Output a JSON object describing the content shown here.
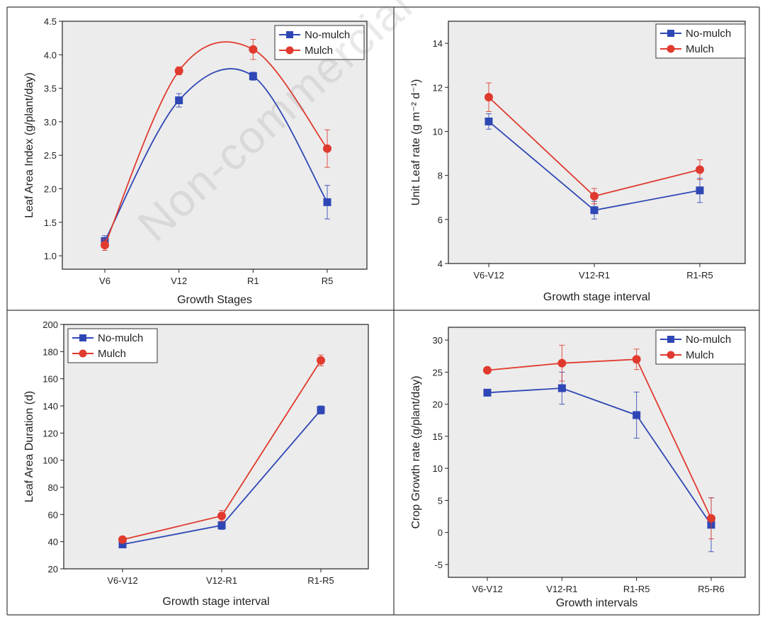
{
  "watermark": "Non-commercial",
  "colors": {
    "no_mulch": "#2f47b5",
    "mulch": "#e03a2e",
    "plot_bg": "#ececec",
    "axis": "#222222"
  },
  "chart_data": [
    {
      "type": "line",
      "xlabel": "Growth Stages",
      "ylabel": "Leaf Area Index (g/plant/day)",
      "categories": [
        "V6",
        "V12",
        "R1",
        "R5"
      ],
      "ylim": [
        0.8,
        4.5
      ],
      "yticks": [
        1.0,
        1.5,
        2.0,
        2.5,
        3.0,
        3.5,
        4.0,
        4.5
      ],
      "ytick_labels": [
        "1.0",
        "1.5",
        "2.0",
        "2.5",
        "3.0",
        "3.5",
        "4.0",
        "4.5"
      ],
      "smooth": true,
      "legend": "top-right",
      "series": [
        {
          "name": "No-mulch",
          "marker": "square",
          "values": [
            1.22,
            3.32,
            3.68,
            1.8
          ],
          "errors": [
            0.08,
            0.1,
            0.06,
            0.25
          ]
        },
        {
          "name": "Mulch",
          "marker": "circle",
          "values": [
            1.16,
            3.76,
            4.08,
            2.6
          ],
          "errors": [
            0.08,
            0.06,
            0.15,
            0.28
          ]
        }
      ]
    },
    {
      "type": "line",
      "xlabel": "Growth stage interval",
      "ylabel": "Unit Leaf rate (g m⁻² d⁻¹)",
      "categories": [
        "V6-V12",
        "V12-R1",
        "R1-R5"
      ],
      "ylim": [
        4,
        15
      ],
      "yticks": [
        4,
        6,
        8,
        10,
        12,
        14
      ],
      "ytick_labels": [
        "4",
        "6",
        "8",
        "10",
        "12",
        "14"
      ],
      "smooth": false,
      "legend": "top-right",
      "series": [
        {
          "name": "No-mulch",
          "marker": "square",
          "values": [
            10.45,
            6.42,
            7.32
          ],
          "errors": [
            0.35,
            0.4,
            0.55
          ]
        },
        {
          "name": "Mulch",
          "marker": "circle",
          "values": [
            11.55,
            7.06,
            8.26
          ],
          "errors": [
            0.65,
            0.35,
            0.45
          ]
        }
      ]
    },
    {
      "type": "line",
      "xlabel": "Growth stage interval",
      "ylabel": "Leaf Area Duration (d)",
      "categories": [
        "V6-V12",
        "V12-R1",
        "R1-R5"
      ],
      "ylim": [
        20,
        200
      ],
      "yticks": [
        20,
        40,
        60,
        80,
        100,
        120,
        140,
        160,
        180,
        200
      ],
      "ytick_labels": [
        "20",
        "40",
        "60",
        "80",
        "100",
        "120",
        "140",
        "160",
        "180",
        "200"
      ],
      "smooth": false,
      "legend": "top-left",
      "series": [
        {
          "name": "No-mulch",
          "marker": "square",
          "values": [
            38,
            52,
            137
          ],
          "errors": [
            1.5,
            3,
            3
          ]
        },
        {
          "name": "Mulch",
          "marker": "circle",
          "values": [
            41.5,
            59,
            173.5
          ],
          "errors": [
            2,
            4,
            4
          ]
        }
      ]
    },
    {
      "type": "line",
      "xlabel": "Growth intervals",
      "ylabel": "Crop Growth rate (g/plant/day)",
      "categories": [
        "V6-V12",
        "V12-R1",
        "R1-R5",
        "R5-R6"
      ],
      "ylim": [
        -7,
        32
      ],
      "yticks": [
        -5,
        0,
        5,
        10,
        15,
        20,
        25,
        30
      ],
      "ytick_labels": [
        "-5",
        "0",
        "5",
        "10",
        "15",
        "20",
        "25",
        "30"
      ],
      "smooth": false,
      "legend": "top-right",
      "series": [
        {
          "name": "No-mulch",
          "marker": "square",
          "values": [
            21.8,
            22.5,
            18.3,
            1.2
          ],
          "errors": [
            0.5,
            2.5,
            3.6,
            4.2
          ]
        },
        {
          "name": "Mulch",
          "marker": "circle",
          "values": [
            25.3,
            26.4,
            27.0,
            2.2
          ],
          "errors": [
            0.4,
            2.8,
            1.6,
            3.2
          ]
        }
      ]
    }
  ]
}
